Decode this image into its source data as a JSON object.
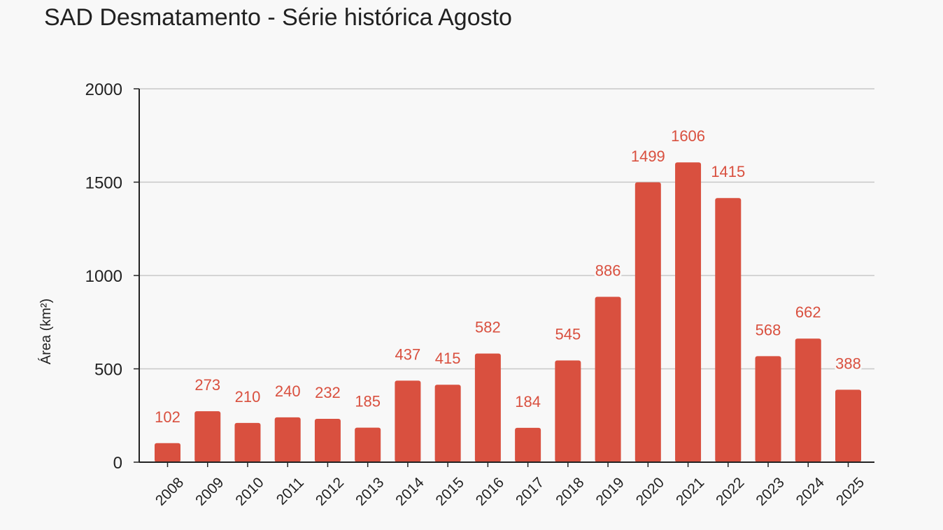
{
  "chart_data": {
    "type": "bar",
    "title": "SAD Desmatamento - Série histórica Agosto",
    "xlabel": "",
    "ylabel": "Área (km²)",
    "ylim": [
      0,
      2000
    ],
    "yticks": [
      0,
      500,
      1000,
      1500,
      2000
    ],
    "grid": true,
    "legend": "none",
    "categories": [
      "2008",
      "2009",
      "2010",
      "2011",
      "2012",
      "2013",
      "2014",
      "2015",
      "2016",
      "2017",
      "2018",
      "2019",
      "2020",
      "2021",
      "2022",
      "2023",
      "2024",
      "2025"
    ],
    "values": [
      102,
      273,
      210,
      240,
      232,
      185,
      437,
      415,
      582,
      184,
      545,
      886,
      1499,
      1606,
      1415,
      568,
      662,
      388
    ],
    "bar_color": "#d9503f",
    "label_color": "#d9503f"
  }
}
